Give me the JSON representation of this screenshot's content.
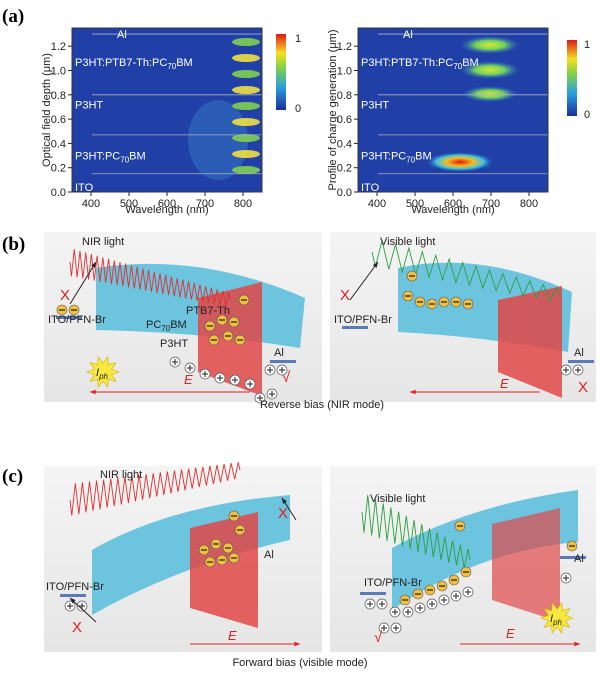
{
  "panel_a": {
    "label": "(a)",
    "left": {
      "y_label": "Optical field depth (μm)",
      "x_label": "Wavelength (nm)",
      "xticks": [
        "400",
        "500",
        "600",
        "700",
        "800"
      ],
      "yticks": [
        "0.0",
        "0.2",
        "0.4",
        "0.6",
        "0.8",
        "1.0",
        "1.2"
      ],
      "colorbar": {
        "max": "1",
        "min": "0"
      },
      "layers": [
        {
          "text": "Al"
        },
        {
          "text": "P3HT:PTB7-Th:PC",
          "sub": "70",
          "tail": "BM"
        },
        {
          "text": "P3HT"
        },
        {
          "text": "P3HT:PC",
          "sub": "70",
          "tail": "BM"
        },
        {
          "text": "ITO"
        }
      ]
    },
    "right": {
      "y_label": "Profile of charge generation (μm)",
      "x_label": "Wavelength (nm)",
      "xticks": [
        "400",
        "500",
        "600",
        "700",
        "800"
      ],
      "yticks": [
        "0.0",
        "0.2",
        "0.4",
        "0.6",
        "0.8",
        "1.0",
        "1.2"
      ],
      "colorbar": {
        "max": "1",
        "min": "0"
      },
      "layers": [
        {
          "text": "Al"
        },
        {
          "text": "P3HT:PTB7-Th:PC",
          "sub": "70",
          "tail": "BM"
        },
        {
          "text": "P3HT"
        },
        {
          "text": "P3HT:PC",
          "sub": "70",
          "tail": "BM"
        },
        {
          "text": "ITO"
        }
      ]
    }
  },
  "panel_b": {
    "label": "(b)",
    "caption": "Reverse bias (NIR mode)",
    "left": {
      "light": "NIR light",
      "electrode_left": "ITO/PFN-Br",
      "acceptor": {
        "text": "PC",
        "sub": "70",
        "tail": "BM"
      },
      "donor_nir": "PTB7-Th",
      "donor_vis": "P3HT",
      "electrode_right": "Al",
      "current": {
        "text": "I",
        "sub": "ph"
      },
      "field": "E",
      "mark_block": "X",
      "mark_ok": "√"
    },
    "right": {
      "light": "Visible light",
      "electrode_left": "ITO/PFN-Br",
      "electrode_right": "Al",
      "field": "E",
      "mark_block_left": "X",
      "mark_block_right": "X"
    }
  },
  "panel_c": {
    "label": "(c)",
    "caption": "Forward bias (visible mode)",
    "left": {
      "light": "NIR light",
      "electrode_left": "ITO/PFN-Br",
      "electrode_right": "Al",
      "field": "E",
      "mark_block_top": "X",
      "mark_block_bottom": "X"
    },
    "right": {
      "light": "Visible light",
      "electrode_left": "ITO/PFN-Br",
      "electrode_right": "Al",
      "current": {
        "text": "I",
        "sub": "ph"
      },
      "field": "E",
      "mark_ok": "√"
    }
  }
}
